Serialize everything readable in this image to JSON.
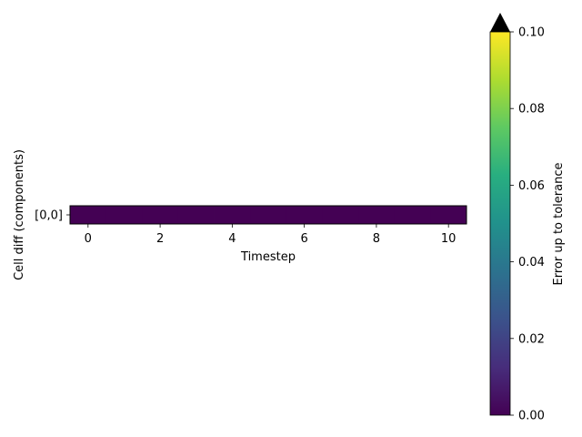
{
  "chart_data": {
    "type": "heatmap",
    "x": [
      0,
      1,
      2,
      3,
      4,
      5,
      6,
      7,
      8,
      9,
      10
    ],
    "y_categories": [
      "[0,0]"
    ],
    "values": [
      [
        0,
        0,
        0,
        0,
        0,
        0,
        0,
        0,
        0,
        0,
        0
      ]
    ],
    "xlabel": "Timestep",
    "ylabel": "Cell diff (components)",
    "xlim": [
      -0.5,
      10.5
    ],
    "xticks": [
      0,
      2,
      4,
      6,
      8,
      10
    ],
    "colormap": "viridis",
    "colorbar": {
      "label": "Error up to tolerance",
      "range": [
        0,
        0.1
      ],
      "ticks": [
        "0.00",
        "0.02",
        "0.04",
        "0.06",
        "0.08",
        "0.10"
      ],
      "extend": "max",
      "extend_color": "#000000"
    },
    "cell_color": "#440154",
    "grid": false
  }
}
